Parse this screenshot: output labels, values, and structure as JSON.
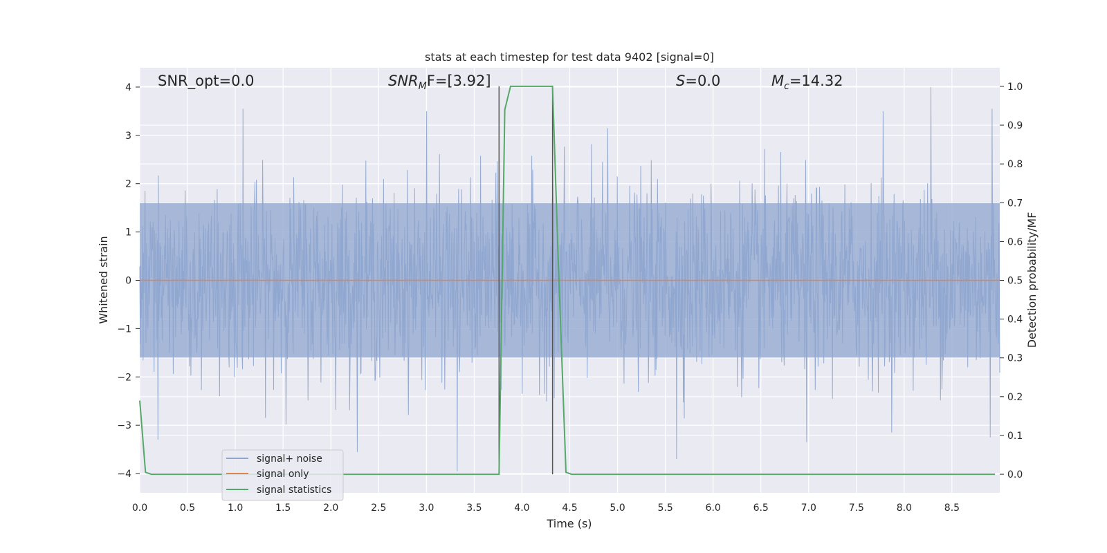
{
  "chart_data": {
    "type": "line",
    "title": "stats at each timestep for test data 9402 [signal=0]",
    "xlabel": "Time (s)",
    "ylabel": "Whitened strain",
    "y2label": "Detection probability/MF",
    "xlim": [
      0,
      9.0
    ],
    "ylim": [
      -4.4,
      4.4
    ],
    "y2lim": [
      -0.048,
      1.048
    ],
    "x_ticks": [
      "0.0",
      "0.5",
      "1.0",
      "1.5",
      "2.0",
      "2.5",
      "3.0",
      "3.5",
      "4.0",
      "4.5",
      "5.0",
      "5.5",
      "6.0",
      "6.5",
      "7.0",
      "7.5",
      "8.0",
      "8.5"
    ],
    "y_ticks": [
      "4",
      "3",
      "2",
      "1",
      "0",
      "−1",
      "−2",
      "−3",
      "−4"
    ],
    "y2_ticks": [
      "1.0",
      "0.9",
      "0.8",
      "0.7",
      "0.6",
      "0.5",
      "0.4",
      "0.3",
      "0.2",
      "0.1",
      "0.0"
    ],
    "grid": true,
    "legend_position": "lower-left",
    "annotations": {
      "snr_opt": "SNR_opt=0.0",
      "snr_mf_main": "SNR",
      "snr_mf_sub": "M",
      "snr_mf_rest": "F=[3.92]",
      "s_main": "S",
      "s_rest": "=0.0",
      "mc_main": "M",
      "mc_sub": "c",
      "mc_rest": "=14.32"
    },
    "vlines_x": [
      3.76,
      4.32
    ],
    "series": [
      {
        "name": "signal+ noise",
        "color": "#8fa6cf",
        "kind": "noise",
        "sample_count": 1800,
        "envelope_core": 1.6,
        "envelope_peak_max": 4.0,
        "envelope_peak_min": -3.95,
        "notable_peaks": [
          {
            "x": 1.08,
            "y": 3.55
          },
          {
            "x": 3.0,
            "y": 3.5
          },
          {
            "x": 7.78,
            "y": 3.5
          },
          {
            "x": 8.28,
            "y": 4.0
          },
          {
            "x": 8.92,
            "y": 3.55
          },
          {
            "x": 4.9,
            "y": 3.15
          },
          {
            "x": 3.32,
            "y": -3.95
          },
          {
            "x": 5.62,
            "y": -3.7
          },
          {
            "x": 0.19,
            "y": -3.3
          },
          {
            "x": 6.98,
            "y": -3.35
          },
          {
            "x": 8.9,
            "y": -3.25
          }
        ]
      },
      {
        "name": "signal only",
        "color": "#dd8452",
        "kind": "flat",
        "x": [
          0,
          9.0
        ],
        "y": [
          0,
          0
        ]
      },
      {
        "name": "signal statistics",
        "color": "#55a868",
        "kind": "probability",
        "x": [
          0.0,
          0.06,
          0.12,
          0.2,
          3.5,
          3.76,
          3.82,
          3.88,
          4.2,
          4.32,
          4.38,
          4.46,
          4.52,
          8.95
        ],
        "y": [
          0.19,
          0.005,
          0.0,
          0.0,
          0.0,
          0.0,
          0.94,
          1.0,
          1.0,
          1.0,
          0.55,
          0.005,
          0.0,
          0.0
        ]
      }
    ]
  }
}
